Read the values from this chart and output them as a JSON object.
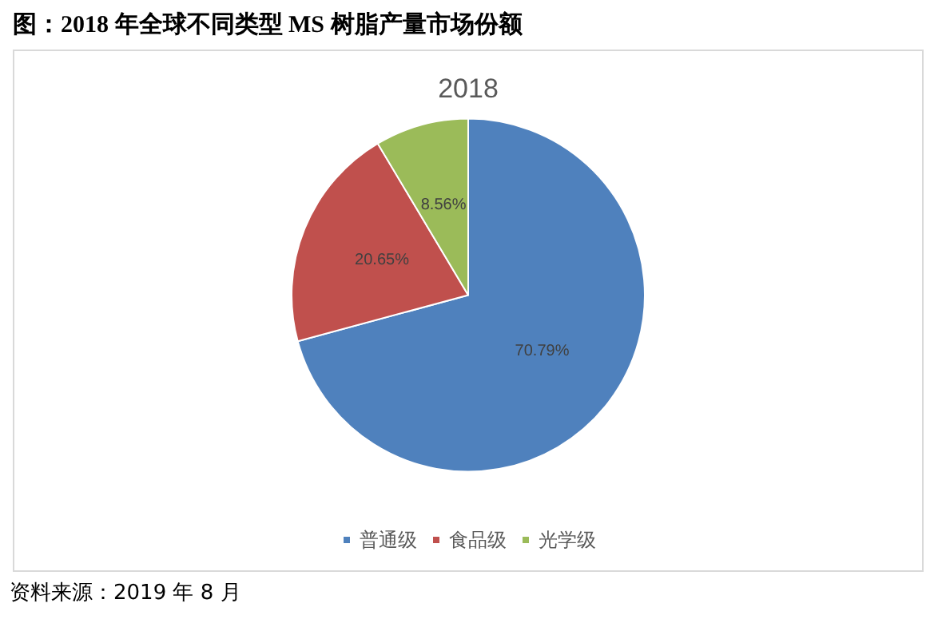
{
  "chart_data": {
    "type": "pie",
    "title": "图：2018 年全球不同类型 MS 树脂产量市场份额",
    "subtitle": "2018",
    "categories": [
      "普通级",
      "食品级",
      "光学级"
    ],
    "values": [
      70.79,
      20.65,
      8.56
    ],
    "colors": [
      "#4f81bd",
      "#c0504d",
      "#9bbb59"
    ],
    "value_labels": [
      "70.79%",
      "20.65%",
      "8.56%"
    ],
    "legend": "bottom",
    "annotations": [
      "资料来源：2019 年 8 月"
    ]
  }
}
